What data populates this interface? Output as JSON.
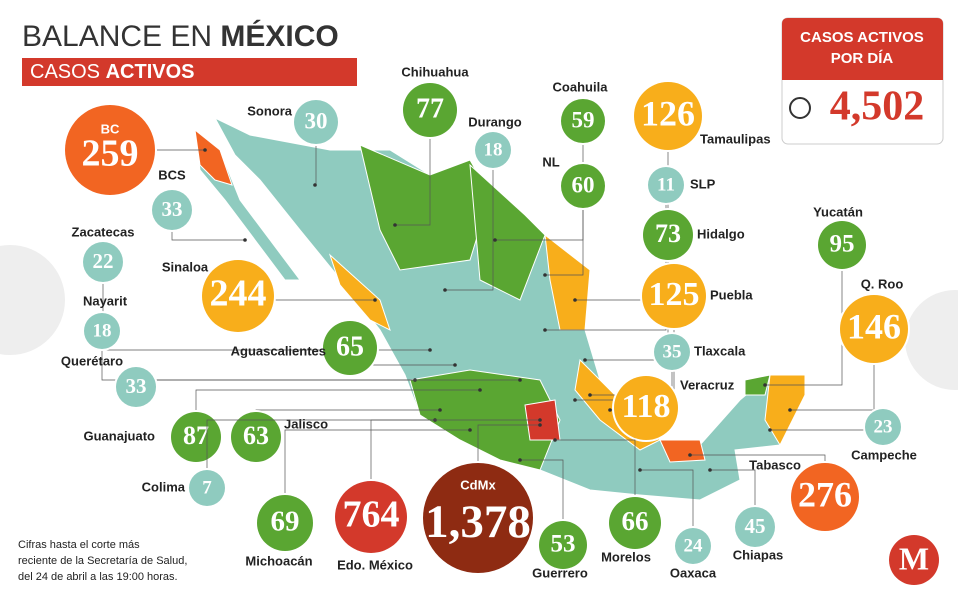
{
  "header": {
    "title_regular": "BALANCE EN",
    "title_bold": "MÉXICO",
    "subtitle_regular": "CASOS",
    "subtitle_bold": "ACTIVOS"
  },
  "total_box": {
    "title": "CASOS ACTIVOS POR DÍA",
    "value": "4,502"
  },
  "states": [
    {
      "name": "BC",
      "value": "259",
      "color": "#f26522"
    },
    {
      "name": "Sonora",
      "value": "30",
      "color": "#8fcbbf"
    },
    {
      "name": "Chihuahua",
      "value": "77",
      "color": "#5aa632"
    },
    {
      "name": "Durango",
      "value": "18",
      "color": "#8fcbbf"
    },
    {
      "name": "Coahuila",
      "value": "59",
      "color": "#5aa632"
    },
    {
      "name": "Tamaulipas",
      "value": "126",
      "color": "#f8ae1b"
    },
    {
      "name": "NL",
      "value": "60",
      "color": "#5aa632"
    },
    {
      "name": "SLP",
      "value": "11",
      "color": "#8fcbbf"
    },
    {
      "name": "Hidalgo",
      "value": "73",
      "color": "#5aa632"
    },
    {
      "name": "Yucatán",
      "value": "95",
      "color": "#5aa632"
    },
    {
      "name": "BCS",
      "value": "33",
      "color": "#8fcbbf"
    },
    {
      "name": "Zacatecas",
      "value": "22",
      "color": "#8fcbbf"
    },
    {
      "name": "Sinaloa",
      "value": "244",
      "color": "#f8ae1b"
    },
    {
      "name": "Puebla",
      "value": "125",
      "color": "#f8ae1b"
    },
    {
      "name": "Q. Roo",
      "value": "146",
      "color": "#f8ae1b"
    },
    {
      "name": "Nayarit",
      "value": "18",
      "color": "#8fcbbf"
    },
    {
      "name": "Aguascalientes",
      "value": "65",
      "color": "#5aa632"
    },
    {
      "name": "Tlaxcala",
      "value": "35",
      "color": "#8fcbbf"
    },
    {
      "name": "Querétaro",
      "value": "33",
      "color": "#8fcbbf"
    },
    {
      "name": "Veracruz",
      "value": "118",
      "color": "#f8ae1b"
    },
    {
      "name": "Guanajuato",
      "value": "87",
      "color": "#5aa632"
    },
    {
      "name": "Jalisco",
      "value": "63",
      "color": "#5aa632"
    },
    {
      "name": "Campeche",
      "value": "23",
      "color": "#8fcbbf"
    },
    {
      "name": "Tabasco",
      "value": "276",
      "color": "#f26522"
    },
    {
      "name": "Colima",
      "value": "7",
      "color": "#8fcbbf"
    },
    {
      "name": "Michoacán",
      "value": "69",
      "color": "#5aa632"
    },
    {
      "name": "Edo. México",
      "value": "764",
      "color": "#d3392b"
    },
    {
      "name": "CdMx",
      "value": "1,378",
      "color": "#8e2b12"
    },
    {
      "name": "Guerrero",
      "value": "53",
      "color": "#5aa632"
    },
    {
      "name": "Morelos",
      "value": "66",
      "color": "#5aa632"
    },
    {
      "name": "Oaxaca",
      "value": "24",
      "color": "#8fcbbf"
    },
    {
      "name": "Chiapas",
      "value": "45",
      "color": "#8fcbbf"
    }
  ],
  "note": [
    "Cifras hasta el corte más",
    "reciente de la Secretaría de Salud,",
    "del 24 de abril a las 19:00 horas."
  ],
  "logo": "M"
}
